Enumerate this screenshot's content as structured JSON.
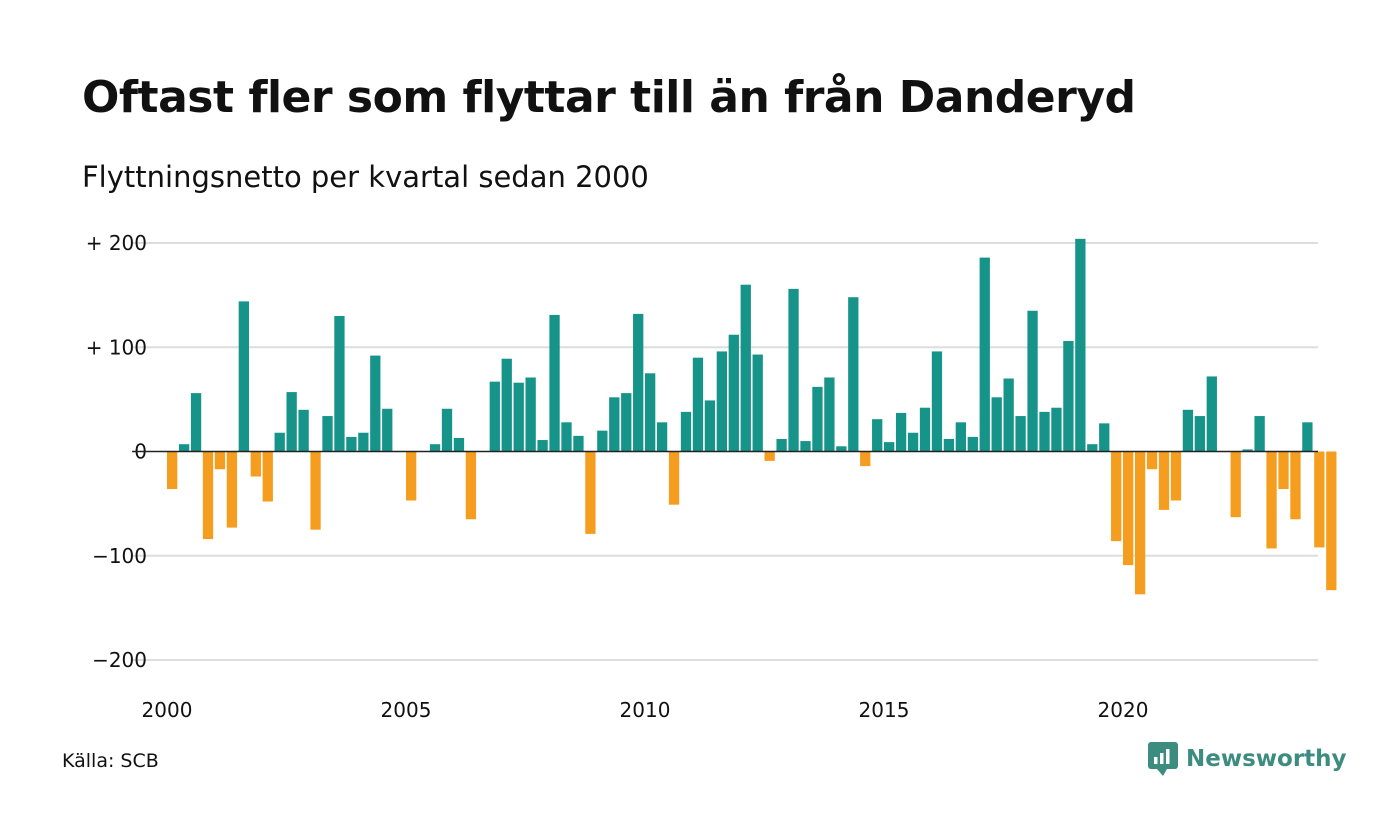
{
  "title": "Oftast fler som flyttar till än från Danderyd",
  "subtitle": "Flyttningsnetto per kvartal sedan 2000",
  "source": "Källa: SCB",
  "brand": {
    "name": "Newsworthy",
    "icon": "newsworthy-logo-icon",
    "color": "#3d8c80"
  },
  "colors": {
    "positive": "#17948a",
    "negative": "#f59d1f",
    "grid": "#dddddd",
    "zero": "#222222"
  },
  "chart_data": {
    "type": "bar",
    "x_start_year": 2000,
    "periods_per_year": 4,
    "x_ticks": [
      "2000",
      "2005",
      "2010",
      "2015",
      "2020"
    ],
    "y_ticks": [
      {
        "value": 200,
        "label": "+ 200"
      },
      {
        "value": 100,
        "label": "+ 100"
      },
      {
        "value": 0,
        "label": "0"
      },
      {
        "value": -100,
        "label": "−100"
      },
      {
        "value": -200,
        "label": "−200"
      }
    ],
    "ylim": [
      -200,
      200
    ],
    "grid": true,
    "values": [
      -36,
      7,
      56,
      -84,
      -17,
      -73,
      144,
      -24,
      -48,
      18,
      57,
      40,
      -75,
      34,
      130,
      14,
      18,
      92,
      41,
      0,
      -47,
      0,
      7,
      41,
      13,
      -65,
      0,
      67,
      89,
      66,
      71,
      11,
      131,
      28,
      15,
      -79,
      20,
      52,
      56,
      132,
      75,
      28,
      -51,
      38,
      90,
      49,
      96,
      112,
      160,
      93,
      -9,
      12,
      156,
      10,
      62,
      71,
      5,
      148,
      -14,
      31,
      9,
      37,
      18,
      42,
      96,
      12,
      28,
      14,
      186,
      52,
      70,
      34,
      135,
      38,
      42,
      106,
      204,
      7,
      27,
      -86,
      -109,
      -137,
      -17,
      -56,
      -47,
      40,
      34,
      72,
      0,
      -63,
      2,
      34,
      -93,
      -36,
      -65,
      28,
      -92,
      -133
    ]
  }
}
